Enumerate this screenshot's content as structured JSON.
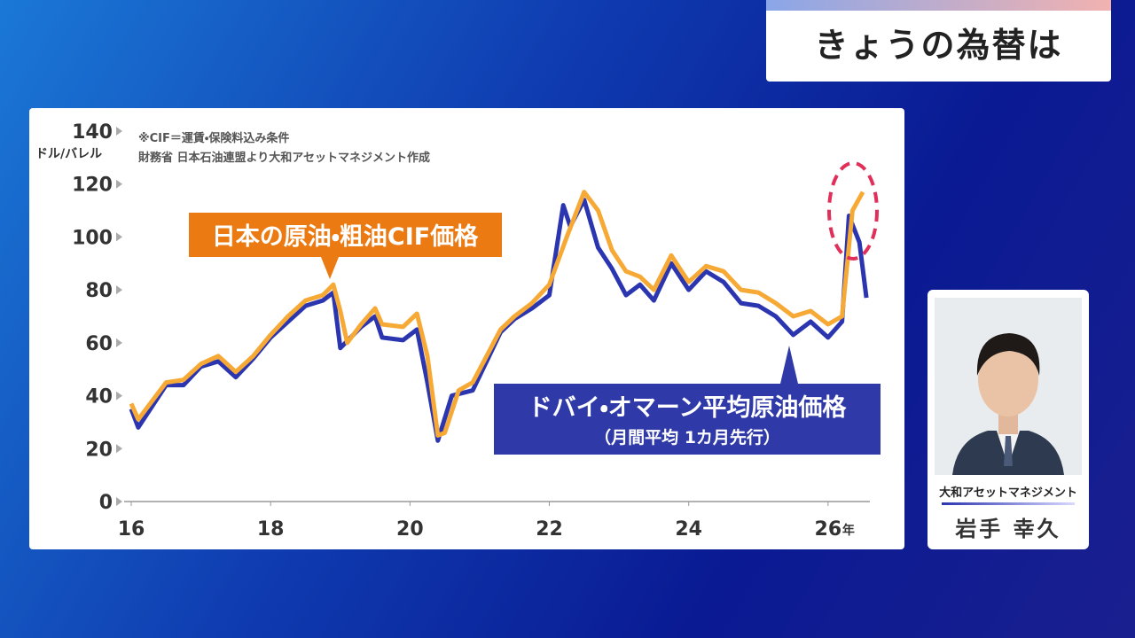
{
  "header": {
    "title": "きょうの為替は"
  },
  "presenter": {
    "organization": "大和アセットマネジメント",
    "name": "岩手 幸久"
  },
  "chart_data": {
    "type": "line",
    "notes": [
      "※CIF＝運賃・保険料込み条件",
      "財務省 日本石油連盟より大和アセットマネジメント作成"
    ],
    "y_unit_label": "ドル/バレル",
    "x_unit_label": "年",
    "xlim": [
      2016,
      2026.6
    ],
    "ylim": [
      0,
      140
    ],
    "xticks": [
      {
        "value": 2016,
        "label": "16"
      },
      {
        "value": 2018,
        "label": "18"
      },
      {
        "value": 2020,
        "label": "20"
      },
      {
        "value": 2022,
        "label": "22"
      },
      {
        "value": 2024,
        "label": "24"
      },
      {
        "value": 2026,
        "label": "26"
      }
    ],
    "yticks": [
      0,
      20,
      40,
      60,
      80,
      100,
      120,
      140
    ],
    "series": [
      {
        "name": "ドバイ・オマーン平均原油価格",
        "subtitle": "（月間平均 1カ月先行）",
        "color": "#2b35b0",
        "x": [
          2016.0,
          2016.1,
          2016.5,
          2016.75,
          2017.0,
          2017.25,
          2017.5,
          2017.75,
          2018.0,
          2018.25,
          2018.5,
          2018.75,
          2018.9,
          2019.0,
          2019.3,
          2019.5,
          2019.6,
          2019.9,
          2020.1,
          2020.25,
          2020.4,
          2020.6,
          2020.9,
          2021.1,
          2021.3,
          2021.5,
          2021.75,
          2022.0,
          2022.2,
          2022.3,
          2022.5,
          2022.7,
          2022.9,
          2023.1,
          2023.3,
          2023.5,
          2023.75,
          2024.0,
          2024.25,
          2024.5,
          2024.75,
          2025.0,
          2025.25,
          2025.5,
          2025.75,
          2026.0,
          2026.2,
          2026.3,
          2026.45,
          2026.55
        ],
        "values": [
          35,
          28,
          44,
          44,
          51,
          53,
          47,
          54,
          62,
          68,
          74,
          76,
          79,
          58,
          66,
          70,
          62,
          61,
          65,
          45,
          23,
          40,
          42,
          53,
          64,
          69,
          73,
          78,
          112,
          104,
          114,
          96,
          88,
          78,
          82,
          76,
          90,
          80,
          87,
          83,
          75,
          74,
          70,
          63,
          68,
          62,
          68,
          108,
          98,
          77
        ]
      },
      {
        "name": "日本の原油・粗油CIF価格",
        "color": "#f7a935",
        "x": [
          2016.0,
          2016.1,
          2016.5,
          2016.75,
          2017.0,
          2017.25,
          2017.5,
          2017.75,
          2018.0,
          2018.25,
          2018.5,
          2018.75,
          2018.9,
          2019.0,
          2019.1,
          2019.3,
          2019.5,
          2019.6,
          2019.9,
          2020.1,
          2020.25,
          2020.4,
          2020.5,
          2020.7,
          2020.9,
          2021.1,
          2021.3,
          2021.5,
          2021.75,
          2022.0,
          2022.25,
          2022.5,
          2022.7,
          2022.9,
          2023.1,
          2023.3,
          2023.5,
          2023.75,
          2024.0,
          2024.25,
          2024.5,
          2024.75,
          2025.0,
          2025.25,
          2025.5,
          2025.75,
          2026.0,
          2026.2,
          2026.35,
          2026.5
        ],
        "values": [
          37,
          31,
          45,
          46,
          52,
          55,
          49,
          55,
          63,
          70,
          76,
          78,
          82,
          72,
          60,
          67,
          73,
          67,
          66,
          71,
          55,
          25,
          26,
          42,
          45,
          55,
          65,
          70,
          75,
          82,
          100,
          117,
          110,
          95,
          87,
          85,
          80,
          93,
          83,
          89,
          87,
          80,
          79,
          75,
          70,
          72,
          67,
          70,
          110,
          117
        ]
      }
    ]
  }
}
